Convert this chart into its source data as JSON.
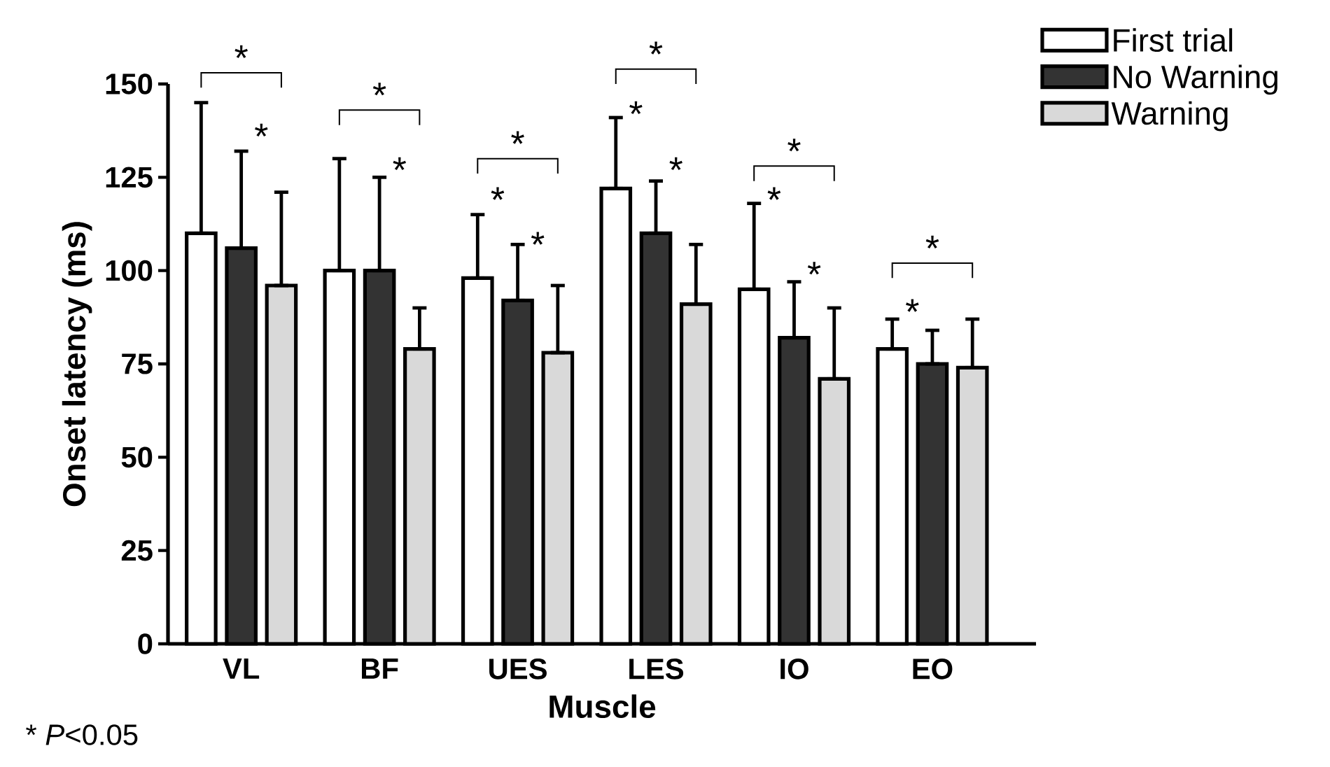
{
  "chart_data": {
    "type": "bar",
    "xlabel": "Muscle",
    "ylabel": "Onset latency (ms)",
    "categories": [
      "VL",
      "BF",
      "UES",
      "LES",
      "IO",
      "EO"
    ],
    "series": [
      {
        "name": "First trial",
        "color": "#ffffff",
        "values": [
          110,
          100,
          98,
          122,
          95,
          79
        ],
        "errors": [
          [
            110,
            145
          ],
          [
            100,
            130
          ],
          [
            98,
            115
          ],
          [
            122,
            141
          ],
          [
            95,
            118
          ],
          [
            79,
            87
          ]
        ]
      },
      {
        "name": "No Warning",
        "color": "#333333",
        "values": [
          106,
          100,
          92,
          110,
          82,
          75
        ],
        "errors": [
          [
            106,
            132
          ],
          [
            100,
            125
          ],
          [
            92,
            107
          ],
          [
            110,
            124
          ],
          [
            82,
            97
          ],
          [
            75,
            84
          ]
        ]
      },
      {
        "name": "Warning",
        "color": "#d9d9d9",
        "values": [
          96,
          79,
          78,
          91,
          71,
          74
        ],
        "errors": [
          [
            96,
            121
          ],
          [
            79,
            90
          ],
          [
            78,
            96
          ],
          [
            91,
            107
          ],
          [
            71,
            90
          ],
          [
            74,
            87
          ]
        ]
      }
    ],
    "ylim": [
      0,
      150
    ],
    "yticks": [
      0,
      25,
      50,
      75,
      100,
      125,
      150
    ],
    "legend": "top right",
    "annotations": [
      "*",
      "*",
      "*",
      "*",
      "*",
      "*",
      "*",
      "*",
      "*",
      "*",
      "*",
      "*",
      "*",
      "*",
      "*",
      "* *P*<0.05"
    ]
  }
}
